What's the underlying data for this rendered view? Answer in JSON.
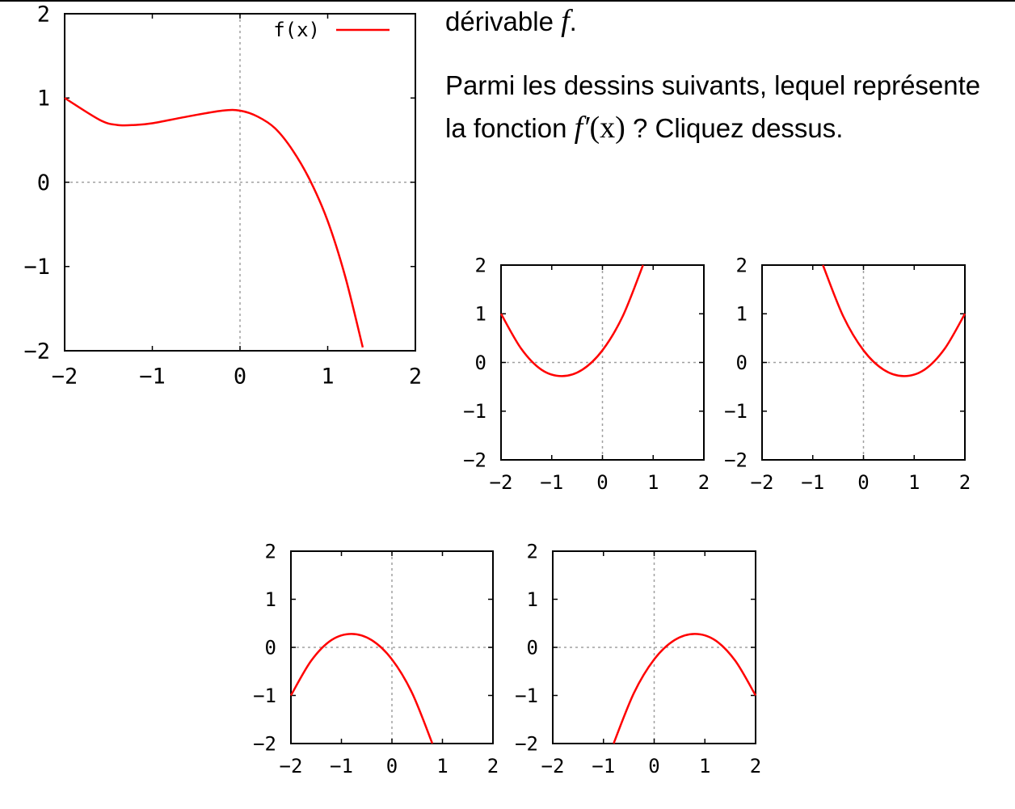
{
  "text": {
    "line1_word": "dérivable",
    "line1_var": "f",
    "line1_end": ".",
    "q_part1": "Parmi les dessins suivants, lequel représente la fonction",
    "q_fprime": "f′",
    "q_x": "(x)",
    "q_part2": "? Cliquez dessus."
  },
  "colors": {
    "curve": "#ff0000",
    "grid": "#a0a0a0",
    "axes": "#000000"
  },
  "chart_data": [
    {
      "id": "main",
      "type": "line",
      "legend": "f(x)",
      "legend_position": "top-right",
      "xlim": [
        -2,
        2
      ],
      "ylim": [
        -2,
        2
      ],
      "xticks": [
        "−2",
        "−1",
        "0",
        "1",
        "2"
      ],
      "yticks": [
        "−2",
        "−1",
        "0",
        "1",
        "2"
      ],
      "grid": "zero-lines",
      "x": [
        -2.0,
        -1.6,
        -1.4,
        -1.2,
        -1.0,
        -0.6,
        -0.2,
        0.0,
        0.2,
        0.4,
        0.6,
        0.8,
        1.0,
        1.2,
        1.4
      ],
      "y": [
        1.0,
        0.74,
        0.68,
        0.68,
        0.7,
        0.78,
        0.85,
        0.85,
        0.78,
        0.64,
        0.38,
        0.02,
        -0.46,
        -1.12,
        -1.96
      ]
    },
    {
      "id": "option-a",
      "type": "line",
      "xlim": [
        -2,
        2
      ],
      "ylim": [
        -2,
        2
      ],
      "xticks": [
        "−2",
        "−1",
        "0",
        "1",
        "2"
      ],
      "yticks": [
        "−2",
        "−1",
        "0",
        "1",
        "2"
      ],
      "grid": "zero-lines",
      "x": [
        -2.0,
        -1.6,
        -1.2,
        -0.8,
        -0.4,
        0.0,
        0.4,
        0.8
      ],
      "y": [
        1.0,
        0.28,
        -0.15,
        -0.28,
        -0.15,
        0.25,
        0.95,
        2.0
      ]
    },
    {
      "id": "option-b",
      "type": "line",
      "xlim": [
        -2,
        2
      ],
      "ylim": [
        -2,
        2
      ],
      "xticks": [
        "−2",
        "−1",
        "0",
        "1",
        "2"
      ],
      "yticks": [
        "−2",
        "−1",
        "0",
        "1",
        "2"
      ],
      "grid": "zero-lines",
      "x": [
        -0.8,
        -0.4,
        0.0,
        0.4,
        0.8,
        1.2,
        1.6,
        2.0
      ],
      "y": [
        2.0,
        0.95,
        0.25,
        -0.15,
        -0.28,
        -0.15,
        0.28,
        1.0
      ]
    },
    {
      "id": "option-c",
      "type": "line",
      "xlim": [
        -2,
        2
      ],
      "ylim": [
        -2,
        2
      ],
      "xticks": [
        "−2",
        "−1",
        "0",
        "1",
        "2"
      ],
      "yticks": [
        "−2",
        "−1",
        "0",
        "1",
        "2"
      ],
      "grid": "zero-lines",
      "x": [
        -2.0,
        -1.6,
        -1.2,
        -0.8,
        -0.4,
        0.0,
        0.4,
        0.8
      ],
      "y": [
        -1.0,
        -0.28,
        0.15,
        0.28,
        0.15,
        -0.25,
        -0.95,
        -2.0
      ]
    },
    {
      "id": "option-d",
      "type": "line",
      "xlim": [
        -2,
        2
      ],
      "ylim": [
        -2,
        2
      ],
      "xticks": [
        "−2",
        "−1",
        "0",
        "1",
        "2"
      ],
      "yticks": [
        "−2",
        "−1",
        "0",
        "1",
        "2"
      ],
      "grid": "zero-lines",
      "x": [
        -0.8,
        -0.4,
        0.0,
        0.4,
        0.8,
        1.2,
        1.6,
        2.0
      ],
      "y": [
        -2.0,
        -0.95,
        -0.25,
        0.15,
        0.28,
        0.15,
        -0.28,
        -1.0
      ]
    }
  ]
}
